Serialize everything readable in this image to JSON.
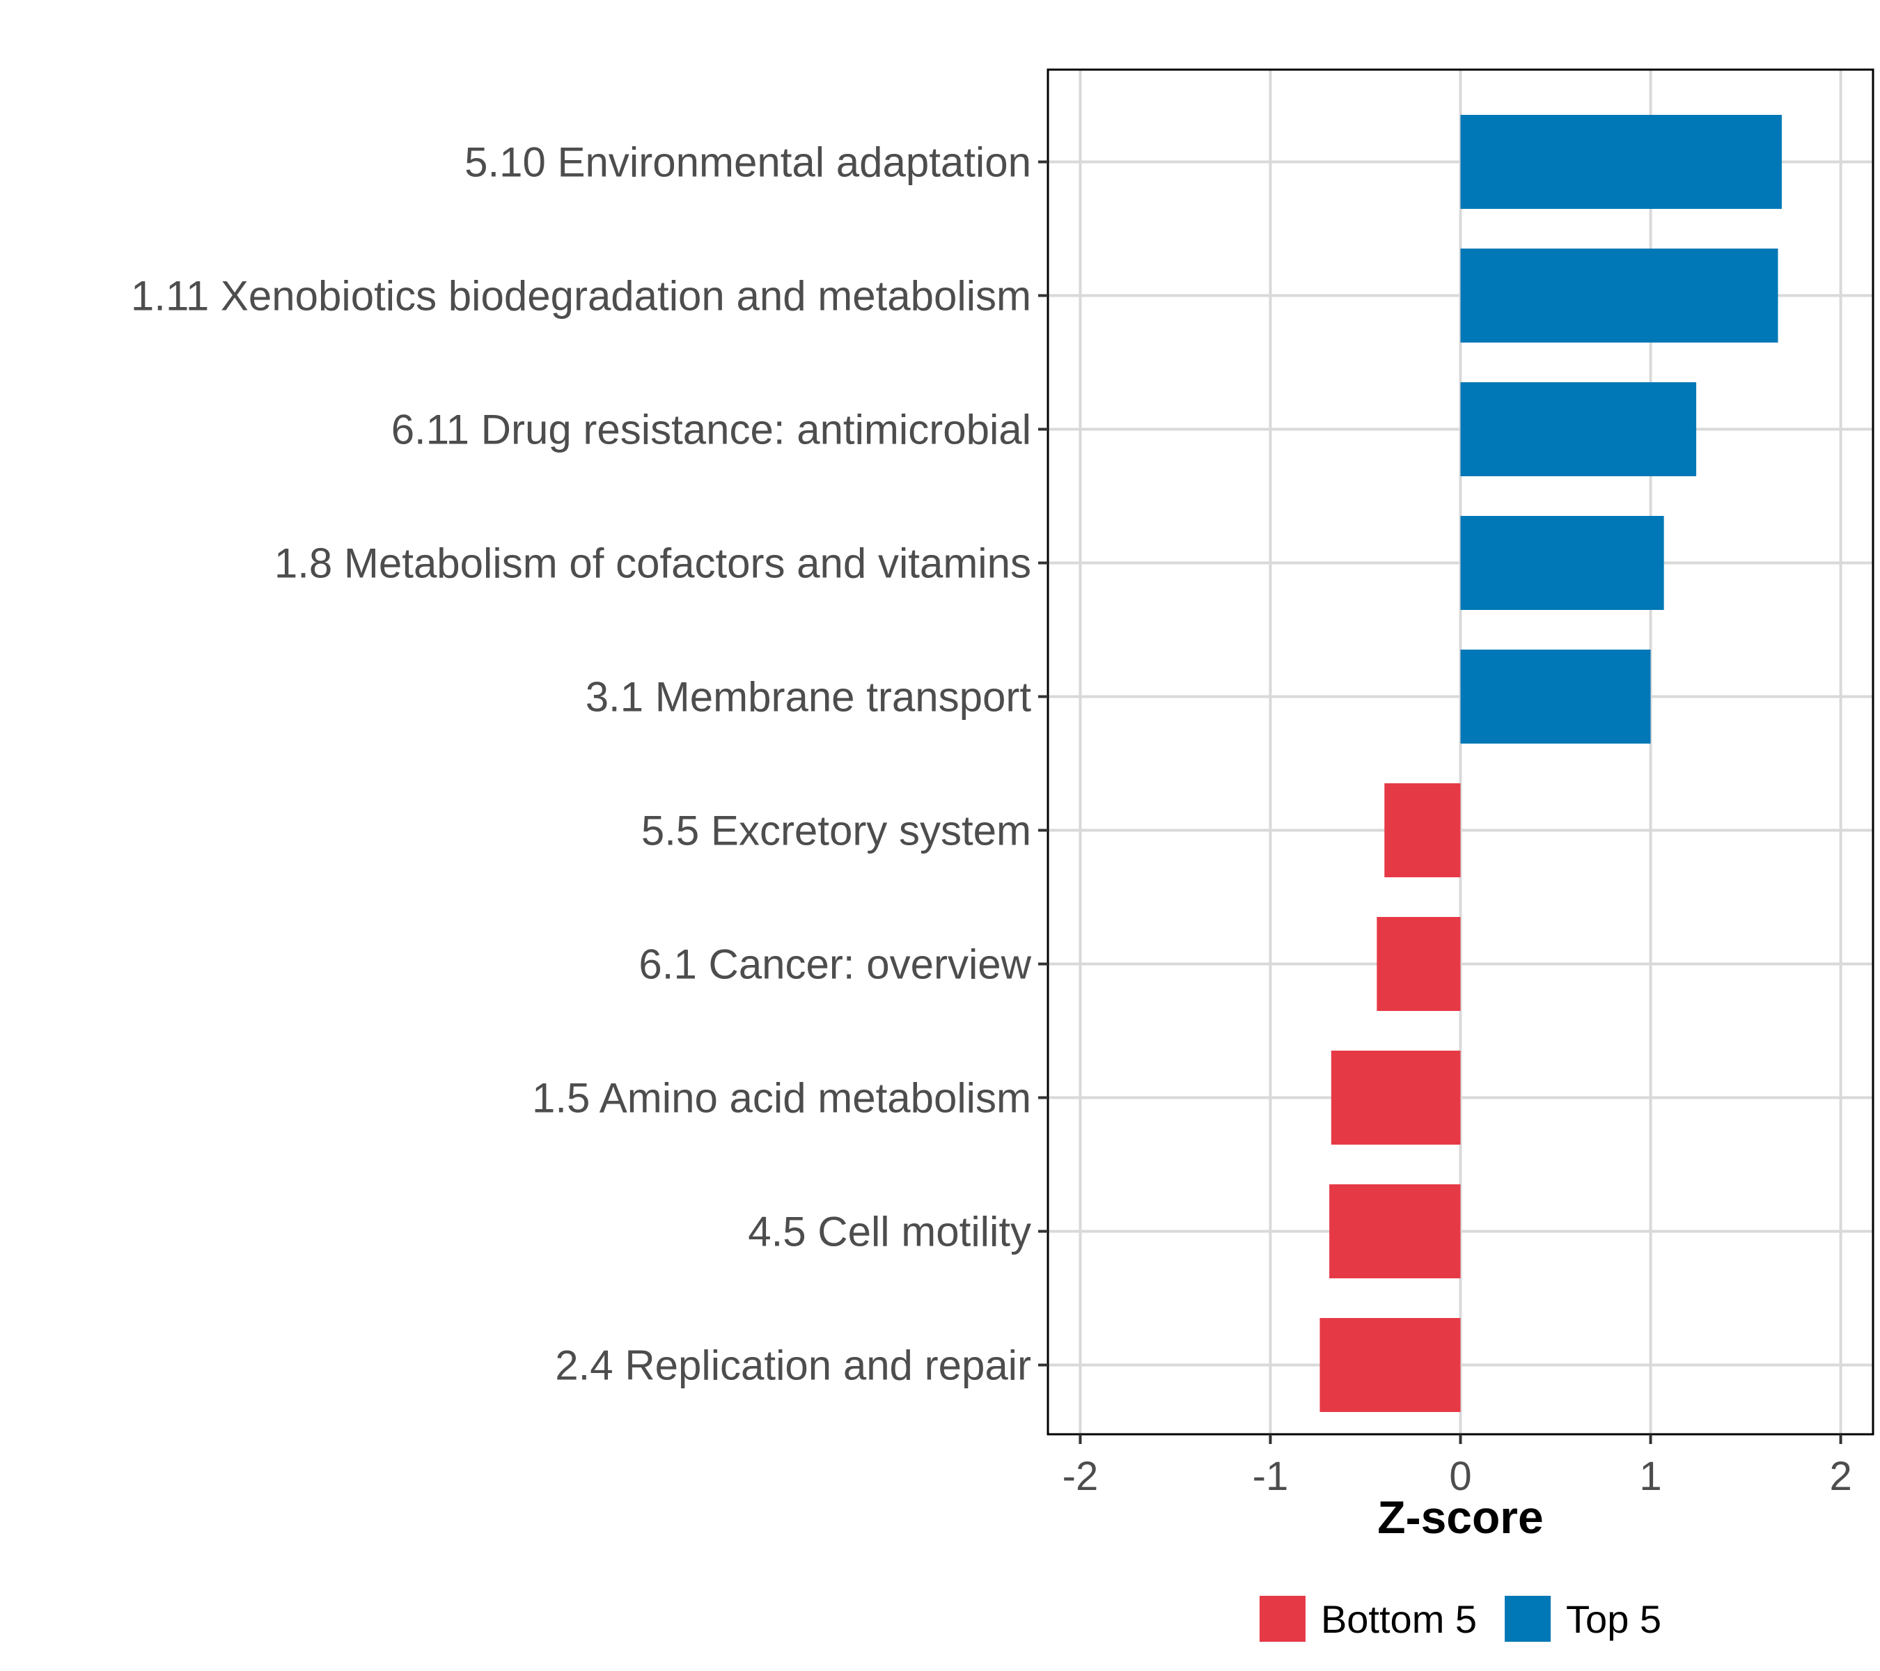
{
  "chart_data": {
    "type": "bar",
    "orientation": "horizontal",
    "categories": [
      "5.10 Environmental adaptation",
      "1.11 Xenobiotics biodegradation and metabolism",
      "6.11 Drug resistance: antimicrobial",
      "1.8 Metabolism of cofactors and vitamins",
      "3.1 Membrane transport",
      "5.5 Excretory system",
      "6.1 Cancer: overview",
      "1.5 Amino acid metabolism",
      "4.5 Cell motility",
      "2.4 Replication and repair"
    ],
    "values": [
      1.69,
      1.67,
      1.24,
      1.07,
      1.0,
      -0.4,
      -0.44,
      -0.68,
      -0.69,
      -0.74
    ],
    "groups": [
      "Top 5",
      "Top 5",
      "Top 5",
      "Top 5",
      "Top 5",
      "Bottom 5",
      "Bottom 5",
      "Bottom 5",
      "Bottom 5",
      "Bottom 5"
    ],
    "xlabel": "Z-score",
    "ylabel": "",
    "xlim": [
      -2.17,
      2.17
    ],
    "xticks": [
      "-2",
      "-1",
      "0",
      "1",
      "2"
    ],
    "xtick_values": [
      -2,
      -1,
      0,
      1,
      2
    ],
    "grid": true,
    "legend": {
      "position": "bottom",
      "entries": [
        {
          "label": "Bottom 5",
          "color": "#e63946"
        },
        {
          "label": "Top 5",
          "color": "#0077b6"
        }
      ]
    },
    "colors": {
      "Top 5": "#0077b6",
      "Bottom 5": "#e63946"
    }
  }
}
